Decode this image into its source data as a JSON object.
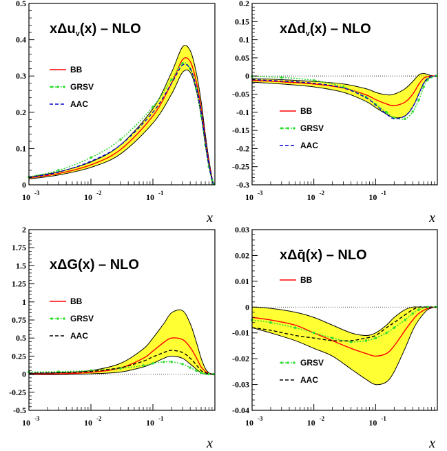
{
  "chart_data": [
    {
      "id": "uv",
      "type": "line",
      "title": {
        "pre": "xΔu",
        "sub": "v",
        "post": "(x)  –  NLO"
      },
      "xlabel": "x",
      "xscale": "log",
      "xlim": [
        0.001,
        1
      ],
      "ylim": [
        0,
        0.5
      ],
      "yticks": [
        0,
        0.1,
        0.2,
        0.3,
        0.4,
        0.5
      ],
      "ytick_labels": [
        "0",
        "0.1",
        "0.2",
        "0.3",
        "0.4",
        "0.5"
      ],
      "xticks": [
        {
          "base": "10",
          "exp": "-3"
        },
        {
          "base": "10",
          "exp": "-2"
        },
        {
          "base": "10",
          "exp": "-1"
        }
      ],
      "x": [
        0.001,
        0.003,
        0.01,
        0.03,
        0.1,
        0.2,
        0.3,
        0.4,
        0.5,
        0.6,
        0.7,
        0.8,
        0.9,
        0.95
      ],
      "band": {
        "upper": [
          0.022,
          0.036,
          0.063,
          0.11,
          0.21,
          0.31,
          0.38,
          0.37,
          0.31,
          0.23,
          0.14,
          0.07,
          0.02,
          0.004
        ],
        "lower": [
          0.016,
          0.027,
          0.048,
          0.085,
          0.17,
          0.25,
          0.31,
          0.31,
          0.26,
          0.19,
          0.11,
          0.05,
          0.012,
          0.002
        ]
      },
      "series": [
        {
          "name": "BB",
          "style": "solid",
          "color": "#ff0000",
          "values": [
            0.019,
            0.031,
            0.055,
            0.097,
            0.19,
            0.28,
            0.345,
            0.34,
            0.285,
            0.21,
            0.125,
            0.06,
            0.015,
            0.003
          ]
        },
        {
          "name": "GRSV",
          "style": "dotted",
          "color": "#33dd33",
          "values": [
            0.022,
            0.04,
            0.075,
            0.125,
            0.215,
            0.29,
            0.335,
            0.32,
            0.265,
            0.19,
            0.11,
            0.05,
            0.013,
            0.003
          ]
        },
        {
          "name": "AAC",
          "style": "dashed",
          "color": "#0000cc",
          "values": [
            0.02,
            0.035,
            0.065,
            0.11,
            0.2,
            0.28,
            0.33,
            0.32,
            0.27,
            0.2,
            0.12,
            0.055,
            0.014,
            0.003
          ]
        }
      ],
      "legend": [
        "BB",
        "GRSV",
        "AAC"
      ],
      "legend_position": "middle-left",
      "zero_line": true
    },
    {
      "id": "dv",
      "type": "line",
      "title": {
        "pre": "xΔd",
        "sub": "v",
        "post": "(x)  –  NLO"
      },
      "xlabel": "x",
      "xscale": "log",
      "xlim": [
        0.001,
        1
      ],
      "ylim": [
        -0.3,
        0.2
      ],
      "yticks": [
        -0.3,
        -0.25,
        -0.2,
        -0.15,
        -0.1,
        -0.05,
        0,
        0.05,
        0.1,
        0.15,
        0.2
      ],
      "ytick_labels": [
        "-0.3",
        "-0.25",
        "-0.2",
        "-0.15",
        "-0.1",
        "-0.05",
        "0",
        "0.05",
        "0.1",
        "0.15",
        "0.2"
      ],
      "xticks": [
        {
          "base": "10",
          "exp": "-3"
        },
        {
          "base": "10",
          "exp": "-2"
        },
        {
          "base": "10",
          "exp": "-1"
        }
      ],
      "x": [
        0.001,
        0.003,
        0.01,
        0.03,
        0.07,
        0.1,
        0.15,
        0.2,
        0.3,
        0.4,
        0.5,
        0.6,
        0.7,
        0.8,
        0.95
      ],
      "band": {
        "upper": [
          -0.007,
          -0.01,
          -0.015,
          -0.022,
          -0.035,
          -0.045,
          -0.052,
          -0.05,
          -0.035,
          -0.015,
          0.003,
          0.007,
          0.004,
          0.001,
          0.0
        ],
        "lower": [
          -0.017,
          -0.022,
          -0.03,
          -0.045,
          -0.07,
          -0.087,
          -0.105,
          -0.115,
          -0.11,
          -0.085,
          -0.05,
          -0.02,
          -0.008,
          -0.002,
          0.0
        ]
      },
      "series": [
        {
          "name": "BB",
          "style": "solid",
          "color": "#ff0000",
          "values": [
            -0.012,
            -0.016,
            -0.022,
            -0.033,
            -0.052,
            -0.065,
            -0.077,
            -0.082,
            -0.072,
            -0.05,
            -0.023,
            -0.006,
            -0.002,
            0.0,
            0.0
          ]
        },
        {
          "name": "GRSV",
          "style": "dotted",
          "color": "#33dd33",
          "values": [
            -0.001,
            -0.004,
            -0.012,
            -0.03,
            -0.058,
            -0.078,
            -0.1,
            -0.115,
            -0.118,
            -0.098,
            -0.066,
            -0.03,
            -0.01,
            -0.003,
            0.0
          ]
        },
        {
          "name": "AAC",
          "style": "dashed",
          "color": "#0000cc",
          "values": [
            -0.01,
            -0.014,
            -0.02,
            -0.033,
            -0.06,
            -0.08,
            -0.105,
            -0.118,
            -0.11,
            -0.085,
            -0.05,
            -0.02,
            -0.006,
            -0.002,
            0.0
          ]
        }
      ],
      "legend": [
        "BB",
        "GRSV",
        "AAC"
      ],
      "legend_position": "middle-left",
      "zero_line": true
    },
    {
      "id": "dg",
      "type": "line",
      "title": {
        "pre": "xΔG(x)  –  NLO",
        "sub": "",
        "post": ""
      },
      "xlabel": "x",
      "xscale": "log",
      "xlim": [
        0.001,
        1
      ],
      "ylim": [
        -0.5,
        2
      ],
      "yticks": [
        -0.5,
        -0.25,
        0,
        0.25,
        0.5,
        0.75,
        1,
        1.25,
        1.5,
        1.75,
        2
      ],
      "ytick_labels": [
        "-0.5",
        "-0.25",
        "0",
        "0.25",
        "0.5",
        "0.75",
        "1",
        "1.25",
        "1.5",
        "1.75",
        "2"
      ],
      "xticks": [
        {
          "base": "10",
          "exp": "-3"
        },
        {
          "base": "10",
          "exp": "-2"
        },
        {
          "base": "10",
          "exp": "-1"
        }
      ],
      "x": [
        0.001,
        0.003,
        0.01,
        0.03,
        0.07,
        0.1,
        0.15,
        0.2,
        0.3,
        0.4,
        0.5,
        0.6,
        0.7,
        0.8,
        0.95
      ],
      "band": {
        "upper": [
          0.012,
          0.02,
          0.05,
          0.15,
          0.35,
          0.5,
          0.7,
          0.85,
          0.88,
          0.7,
          0.45,
          0.22,
          0.08,
          0.02,
          0.0
        ],
        "lower": [
          -0.005,
          -0.005,
          0.005,
          0.03,
          0.1,
          0.15,
          0.22,
          0.25,
          0.22,
          0.14,
          0.07,
          0.02,
          0.0,
          0.0,
          0.0
        ]
      },
      "series": [
        {
          "name": "BB",
          "style": "solid",
          "color": "#ff0000",
          "values": [
            0.002,
            0.006,
            0.025,
            0.085,
            0.22,
            0.32,
            0.44,
            0.5,
            0.48,
            0.37,
            0.23,
            0.1,
            0.04,
            0.01,
            0.0
          ]
        },
        {
          "name": "GRSV",
          "style": "dotted",
          "color": "#33dd33",
          "values": [
            0.03,
            0.035,
            0.05,
            0.08,
            0.12,
            0.15,
            0.17,
            0.17,
            0.14,
            0.09,
            0.05,
            0.02,
            0.008,
            0.002,
            0.0
          ]
        },
        {
          "name": "AAC",
          "style": "dashed",
          "color": "#000000",
          "values": [
            0.015,
            0.02,
            0.04,
            0.09,
            0.18,
            0.24,
            0.3,
            0.33,
            0.3,
            0.22,
            0.13,
            0.05,
            0.02,
            0.005,
            0.0
          ]
        }
      ],
      "legend": [
        "BB",
        "GRSV",
        "AAC"
      ],
      "legend_position": "middle-left",
      "zero_line": true
    },
    {
      "id": "qbar",
      "type": "line",
      "title": {
        "pre": "xΔq̄(x)  –  NLO",
        "sub": "",
        "post": ""
      },
      "xlabel": "x",
      "xscale": "log",
      "xlim": [
        0.001,
        1
      ],
      "ylim": [
        -0.04,
        0.03
      ],
      "yticks": [
        -0.04,
        -0.03,
        -0.02,
        -0.01,
        0,
        0.01,
        0.02,
        0.03
      ],
      "ytick_labels": [
        "-0.04",
        "-0.03",
        "-0.02",
        "-0.01",
        "0",
        "0.01",
        "0.02",
        "0.03"
      ],
      "xticks": [
        {
          "base": "10",
          "exp": "-3"
        },
        {
          "base": "10",
          "exp": "-2"
        },
        {
          "base": "10",
          "exp": "-1"
        }
      ],
      "x": [
        0.001,
        0.002,
        0.005,
        0.01,
        0.02,
        0.04,
        0.07,
        0.1,
        0.15,
        0.2,
        0.3,
        0.4,
        0.5,
        0.7,
        0.95
      ],
      "band": {
        "upper": [
          0.0,
          -0.0005,
          -0.002,
          -0.004,
          -0.007,
          -0.01,
          -0.011,
          -0.01,
          -0.007,
          -0.004,
          -0.001,
          0.0,
          0.0,
          0.0,
          0.0
        ],
        "lower": [
          -0.008,
          -0.01,
          -0.013,
          -0.016,
          -0.019,
          -0.024,
          -0.028,
          -0.03,
          -0.029,
          -0.025,
          -0.016,
          -0.009,
          -0.005,
          -0.001,
          0.0
        ]
      },
      "series": [
        {
          "name": "BB",
          "style": "solid",
          "color": "#ff0000",
          "values": [
            -0.004,
            -0.005,
            -0.007,
            -0.01,
            -0.013,
            -0.016,
            -0.018,
            -0.019,
            -0.018,
            -0.015,
            -0.009,
            -0.005,
            -0.0025,
            -0.0005,
            0.0
          ]
        },
        {
          "name": "GRSV",
          "style": "dotted",
          "color": "#33dd33",
          "values": [
            -0.005,
            -0.006,
            -0.008,
            -0.01,
            -0.012,
            -0.0135,
            -0.013,
            -0.012,
            -0.01,
            -0.008,
            -0.005,
            -0.0025,
            -0.001,
            0.0,
            0.0
          ]
        },
        {
          "name": "AAC",
          "style": "dashed",
          "color": "#000000",
          "values": [
            -0.008,
            -0.009,
            -0.011,
            -0.012,
            -0.013,
            -0.013,
            -0.012,
            -0.011,
            -0.008,
            -0.006,
            -0.003,
            -0.001,
            0.0,
            0.0,
            0.0
          ]
        }
      ],
      "legend": [
        "BB",
        "GRSV",
        "AAC"
      ],
      "legend_position": "split: BB top-left, GRSV/AAC bottom-left",
      "zero_line": true
    }
  ],
  "colors": {
    "band_fill": "#ffff33",
    "frame": "#000000",
    "zero_line": "#000000"
  }
}
